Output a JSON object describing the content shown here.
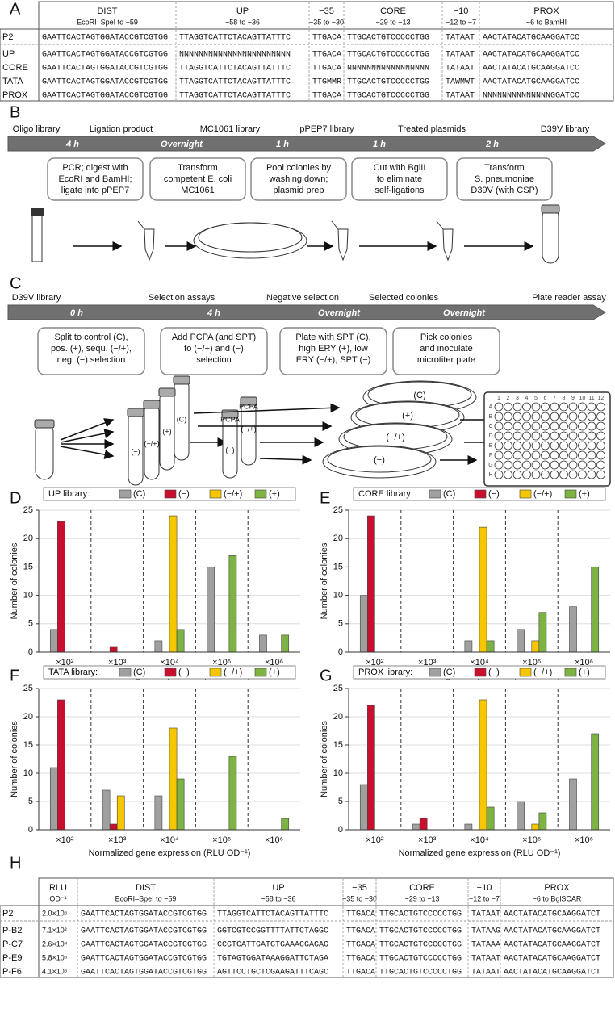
{
  "panel_labels": [
    "A",
    "B",
    "C",
    "D",
    "E",
    "F",
    "G",
    "H"
  ],
  "panel_a": {
    "columns": [
      {
        "name": "DIST",
        "range": "EcoRI–SpeI to −59"
      },
      {
        "name": "UP",
        "range": "−58 to −36"
      },
      {
        "name": "−35",
        "range": "−35 to −30"
      },
      {
        "name": "CORE",
        "range": "−29 to −13"
      },
      {
        "name": "−10",
        "range": "−12 to −7"
      },
      {
        "name": "PROX",
        "range": "−6 to BamHI"
      }
    ],
    "rows": [
      {
        "label": "P2",
        "cells": [
          "GAATTCACTAGTGGATACCGTCGTGG",
          "TTAGGTCATTCTACAGTTATTTC",
          "TTGACA",
          "TTGCACTGTCCCCCTGG",
          "TATAAT",
          "AACTATACATGCAAGGATCC"
        ]
      },
      {
        "label": "UP",
        "cells": [
          "GAATTCACTAGTGGATACCGTCGTGG",
          "NNNNNNNNNNNNNNNNNNNNNNN",
          "TTGACA",
          "TTGCACTGTCCCCCTGG",
          "TATAAT",
          "AACTATACATGCAAGGATCC"
        ]
      },
      {
        "label": "CORE",
        "cells": [
          "GAATTCACTAGTGGATACCGTCGTGG",
          "TTAGGTCATTCTACAGTTATTTC",
          "TTGACA",
          "NNNNNNNNNNNNNNNNN",
          "TATAAT",
          "AACTATACATGCAAGGATCC"
        ]
      },
      {
        "label": "TATA",
        "cells": [
          "GAATTCACTAGTGGATACCGTCGTGG",
          "TTAGGTCATTCTACAGTTATTTC",
          "TTGMMR",
          "TTGCACTGTCCCCCTGG",
          "TAWMWT",
          "AACTATACATGCAAGGATCC"
        ]
      },
      {
        "label": "PROX",
        "cells": [
          "GAATTCACTAGTGGATACCGTCGTGG",
          "TTAGGTCATTCTACAGTTATTTC",
          "TTGACA",
          "TTGCACTGTCCCCCTGG",
          "TATAAT",
          "NNNNNNNNNNNNNNGGATCC"
        ]
      }
    ]
  },
  "panel_b": {
    "stages": [
      "Oligo library",
      "Ligation product",
      "MC1061 library",
      "pPEP7 library",
      "Treated plasmids",
      "D39V library"
    ],
    "durations": [
      "4 h",
      "Overnight",
      "1 h",
      "1 h",
      "2 h"
    ],
    "steps": [
      [
        "PCR; digest with",
        "EcoRI and BamHI;",
        "ligate into pPEP7"
      ],
      [
        "Transform",
        "competent E. coli",
        "MC1061"
      ],
      [
        "Pool colonies by",
        "washing down;",
        "plasmid prep"
      ],
      [
        "Cut with BglII",
        "to eliminate",
        "self-ligations"
      ],
      [
        "Transform",
        "S. pneumoniae",
        "D39V (with CSP)"
      ]
    ]
  },
  "panel_c": {
    "stages": [
      "D39V library",
      "Selection assays",
      "Negative selection",
      "Selected colonies",
      "Plate reader assay"
    ],
    "durations": [
      "0 h",
      "4 h",
      "Overnight",
      "Overnight"
    ],
    "steps": [
      [
        "Split to control (C),",
        "pos. (+), sequ. (−/+),",
        "neg. (−) selection"
      ],
      [
        "Add PCPA (and SPT)",
        "to (−/+) and (−)",
        "selection"
      ],
      [
        "Plate with SPT (C),",
        "high ERY (+), low",
        "ERY (−/+), SPT (−)"
      ],
      [
        "Pick colonies",
        "and inoculate",
        "microtiter plate"
      ]
    ],
    "tube_labels": [
      "(−)",
      "(−/+)",
      "(+)",
      "(C)"
    ],
    "additive": "PCPA",
    "plate_labels": [
      "(C)",
      "(+)",
      "(−/+)",
      "(−)"
    ],
    "microplate": {
      "columns": [
        "1",
        "2",
        "3",
        "4",
        "5",
        "6",
        "7",
        "8",
        "9",
        "10",
        "11",
        "12"
      ],
      "rows": [
        "A",
        "B",
        "C",
        "D",
        "E",
        "F",
        "G",
        "H"
      ]
    }
  },
  "chart_data": [
    {
      "type": "bar",
      "legend_title": "UP library:",
      "xlabel": "Normalized gene expression (RLU OD⁻¹)",
      "ylabel": "Number of colonies",
      "categories": [
        "×10²",
        "×10³",
        "×10⁴",
        "×10⁵",
        "×10⁶"
      ],
      "ylim": [
        0,
        25
      ],
      "yticks": [
        0,
        5,
        10,
        15,
        20,
        25
      ],
      "grid": true,
      "series": [
        {
          "name": "(C)",
          "color": "#a0a0a0",
          "values": [
            4,
            0,
            2,
            15,
            3
          ]
        },
        {
          "name": "(−)",
          "color": "#c8102e",
          "values": [
            23,
            1,
            0,
            0,
            0
          ]
        },
        {
          "name": "(−/+)",
          "color": "#f6c700",
          "values": [
            0,
            0,
            24,
            0,
            0
          ]
        },
        {
          "name": "(+)",
          "color": "#7cb342",
          "values": [
            0,
            0,
            4,
            17,
            3
          ]
        }
      ]
    },
    {
      "type": "bar",
      "legend_title": "CORE library:",
      "xlabel": "Normalized gene expression (RLU OD⁻¹)",
      "ylabel": "Number of colonies",
      "categories": [
        "×10²",
        "×10³",
        "×10⁴",
        "×10⁵",
        "×10⁶"
      ],
      "ylim": [
        0,
        25
      ],
      "yticks": [
        0,
        5,
        10,
        15,
        20,
        25
      ],
      "grid": true,
      "series": [
        {
          "name": "(C)",
          "color": "#a0a0a0",
          "values": [
            10,
            0,
            2,
            4,
            8
          ]
        },
        {
          "name": "(−)",
          "color": "#c8102e",
          "values": [
            24,
            0,
            0,
            0,
            0
          ]
        },
        {
          "name": "(−/+)",
          "color": "#f6c700",
          "values": [
            0,
            0,
            22,
            2,
            0
          ]
        },
        {
          "name": "(+)",
          "color": "#7cb342",
          "values": [
            0,
            0,
            2,
            7,
            15
          ]
        }
      ]
    },
    {
      "type": "bar",
      "legend_title": "TATA library:",
      "xlabel": "Normalized gene expression (RLU OD⁻¹)",
      "ylabel": "Number of colonies",
      "categories": [
        "×10²",
        "×10³",
        "×10⁴",
        "×10⁵",
        "×10⁶"
      ],
      "ylim": [
        0,
        25
      ],
      "yticks": [
        0,
        5,
        10,
        15,
        20,
        25
      ],
      "grid": true,
      "series": [
        {
          "name": "(C)",
          "color": "#a0a0a0",
          "values": [
            11,
            7,
            6,
            0,
            0
          ]
        },
        {
          "name": "(−)",
          "color": "#c8102e",
          "values": [
            23,
            1,
            0,
            0,
            0
          ]
        },
        {
          "name": "(−/+)",
          "color": "#f6c700",
          "values": [
            0,
            6,
            18,
            0,
            0
          ]
        },
        {
          "name": "(+)",
          "color": "#7cb342",
          "values": [
            0,
            0,
            9,
            13,
            2
          ]
        }
      ]
    },
    {
      "type": "bar",
      "legend_title": "PROX library:",
      "xlabel": "Normalized gene expression (RLU OD⁻¹)",
      "ylabel": "Number of colonies",
      "categories": [
        "×10²",
        "×10³",
        "×10⁴",
        "×10⁵",
        "×10⁶"
      ],
      "ylim": [
        0,
        25
      ],
      "yticks": [
        0,
        5,
        10,
        15,
        20,
        25
      ],
      "grid": true,
      "series": [
        {
          "name": "(C)",
          "color": "#a0a0a0",
          "values": [
            8,
            1,
            1,
            5,
            9
          ]
        },
        {
          "name": "(−)",
          "color": "#c8102e",
          "values": [
            22,
            2,
            0,
            0,
            0
          ]
        },
        {
          "name": "(−/+)",
          "color": "#f6c700",
          "values": [
            0,
            0,
            23,
            1,
            0
          ]
        },
        {
          "name": "(+)",
          "color": "#7cb342",
          "values": [
            0,
            0,
            4,
            3,
            17
          ]
        }
      ]
    }
  ],
  "panel_h": {
    "columns": [
      {
        "name": "RLU",
        "range": "OD⁻¹"
      },
      {
        "name": "DIST",
        "range": "EcoRI–SpeI to −59"
      },
      {
        "name": "UP",
        "range": "−58 to −36"
      },
      {
        "name": "−35",
        "range": "−35 to −30"
      },
      {
        "name": "CORE",
        "range": "−29 to −13"
      },
      {
        "name": "−10",
        "range": "−12 to −7"
      },
      {
        "name": "PROX",
        "range": "−6 to BglSCAR"
      }
    ],
    "rows": [
      {
        "label": "P2",
        "cells": [
          "2.0×10⁶",
          "GAATTCACTAGTGGATACCGTCGTGG",
          "TTAGGTCATTCTACAGTTATTTC",
          "TTGACA",
          "TTGCACTGTCCCCCTGG",
          "TATAAT",
          "AACTATACATGCAAGGATCT"
        ]
      },
      {
        "label": "P-B2",
        "cells": [
          "7.1×10²",
          "GAATTCACTAGTGGATACCGTCGTGG",
          "GGTCGTCCGGTTTTATTCTAGGC",
          "TTGACA",
          "TTGCACTGTCCCCCTGG",
          "TATAAG",
          "AACTATACATGCAAGGATCT"
        ]
      },
      {
        "label": "P-C7",
        "cells": [
          "2.6×10⁴",
          "GAATTCACTAGTGGATACCGTCGTGG",
          "CCGTCATTGATGTGAAACGAGAG",
          "TTGACA",
          "TTGCACTGTCCCCCTGG",
          "TATAAA",
          "AACTATACATGCAAGGATCT"
        ]
      },
      {
        "label": "P-E9",
        "cells": [
          "5.8×10⁵",
          "GAATTCACTAGTGGATACCGTCGTGG",
          "TGTAGTGGATAAAGGATTCTAGA",
          "TTGACA",
          "TTGCACTGTCCCCCTGG",
          "TATAAT",
          "AACTATACATGCAAGGATCT"
        ]
      },
      {
        "label": "P-F6",
        "cells": [
          "4.1×10⁶",
          "GAATTCACTAGTGGATACCGTCGTGG",
          "AGTTCCTGCTCGAAGATTTCAGC",
          "TTGACA",
          "TTGCACTGTCCCCCTGG",
          "TATAAT",
          "AACTATACATGCAAGGATCT"
        ]
      }
    ]
  }
}
